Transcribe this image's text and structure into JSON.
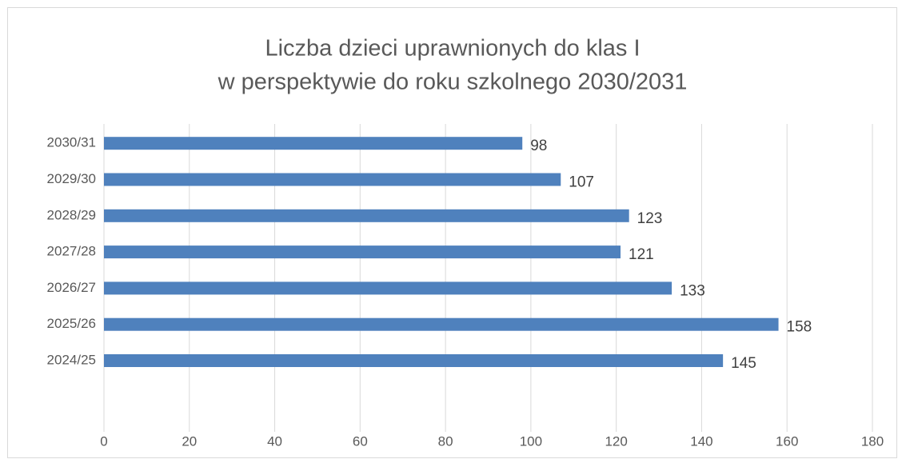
{
  "chart_data": {
    "type": "bar",
    "orientation": "horizontal",
    "title": [
      "Liczba dzieci uprawnionych do klas I",
      "w perspektywie do roku szkolnego 2030/2031"
    ],
    "categories": [
      "2024/25",
      "2025/26",
      "2026/27",
      "2027/28",
      "2028/29",
      "2029/30",
      "2030/31"
    ],
    "values": [
      145,
      158,
      133,
      121,
      123,
      107,
      98
    ],
    "color": "#4f81bd",
    "xlim": [
      0,
      180
    ],
    "xticks": [
      0,
      20,
      40,
      60,
      80,
      100,
      120,
      140,
      160,
      180
    ],
    "grid": true
  }
}
